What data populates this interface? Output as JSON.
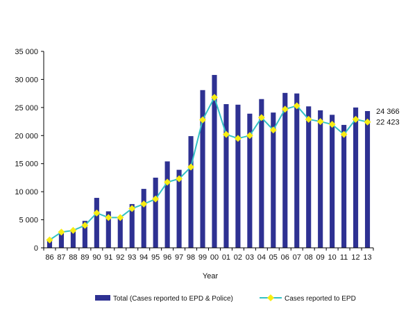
{
  "chart_data": {
    "type": "bar",
    "categories": [
      "86",
      "87",
      "88",
      "89",
      "90",
      "91",
      "92",
      "93",
      "94",
      "95",
      "96",
      "97",
      "98",
      "99",
      "00",
      "01",
      "02",
      "03",
      "04",
      "05",
      "06",
      "07",
      "08",
      "09",
      "10",
      "11",
      "12",
      "13"
    ],
    "xlabel": "Year",
    "ylabel": "",
    "ylim": [
      0,
      35000
    ],
    "yticks": [
      "0",
      "5 000",
      "10 000",
      "15 000",
      "20 000",
      "25 000",
      "30 000",
      "35 000"
    ],
    "ytick_values": [
      0,
      5000,
      10000,
      15000,
      20000,
      25000,
      30000,
      35000
    ],
    "grid": false,
    "legend_position": "bottom",
    "series": [
      {
        "name": "Total (Cases reported to EPD & Police)",
        "kind": "bar",
        "color": "#2e3192",
        "values": [
          1500,
          2700,
          3200,
          4800,
          8900,
          6500,
          5500,
          7800,
          10500,
          12500,
          15400,
          13900,
          19900,
          28100,
          30800,
          25600,
          25500,
          23900,
          26500,
          24100,
          27600,
          27500,
          25200,
          24500,
          23700,
          21900,
          25000,
          24366
        ]
      },
      {
        "name": "Cases reported to EPD",
        "kind": "line",
        "color": "#33c1c4",
        "marker_color": "#f7ec13",
        "values": [
          1400,
          2800,
          3100,
          4000,
          6200,
          5400,
          5400,
          7000,
          7800,
          8700,
          11700,
          12300,
          14400,
          22800,
          26800,
          20200,
          19500,
          20000,
          23200,
          21000,
          24700,
          25300,
          22900,
          22500,
          22000,
          20200,
          22900,
          22423
        ]
      }
    ],
    "annotations": [
      {
        "text": "24 366",
        "series": 0,
        "index": 27
      },
      {
        "text": "22 423",
        "series": 1,
        "index": 27
      }
    ]
  }
}
